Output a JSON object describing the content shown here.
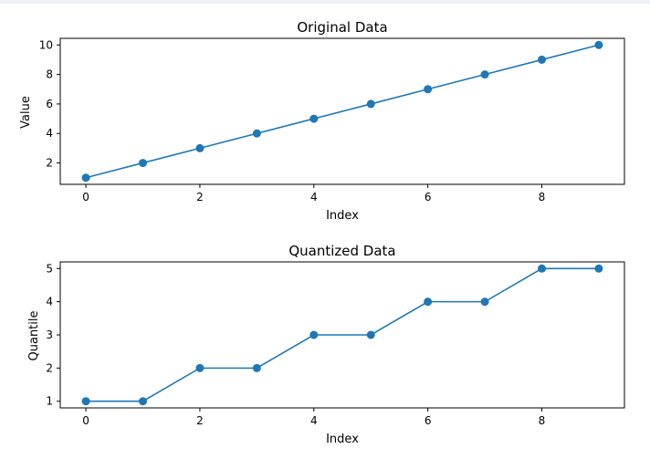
{
  "chart_data": [
    {
      "type": "line",
      "title": "Original Data",
      "xlabel": "Index",
      "ylabel": "Value",
      "x": [
        0,
        1,
        2,
        3,
        4,
        5,
        6,
        7,
        8,
        9
      ],
      "series": [
        {
          "values": [
            1,
            2,
            3,
            4,
            5,
            6,
            7,
            8,
            9,
            10
          ]
        }
      ],
      "xlim": [
        -0.45,
        9.45
      ],
      "ylim": [
        0.55,
        10.45
      ],
      "xticks": [
        0,
        2,
        4,
        6,
        8
      ],
      "yticks": [
        2,
        4,
        6,
        8,
        10
      ],
      "marker": "circle",
      "color": "#1f77b4",
      "grid": false
    },
    {
      "type": "line",
      "title": "Quantized Data",
      "xlabel": "Index",
      "ylabel": "Quantile",
      "x": [
        0,
        1,
        2,
        3,
        4,
        5,
        6,
        7,
        8,
        9
      ],
      "series": [
        {
          "values": [
            1,
            1,
            2,
            2,
            3,
            3,
            4,
            4,
            5,
            5
          ]
        }
      ],
      "xlim": [
        -0.45,
        9.45
      ],
      "ylim": [
        0.8,
        5.2
      ],
      "xticks": [
        0,
        2,
        4,
        6,
        8
      ],
      "yticks": [
        1,
        2,
        3,
        4,
        5
      ],
      "marker": "circle",
      "color": "#1f77b4",
      "grid": false
    }
  ]
}
